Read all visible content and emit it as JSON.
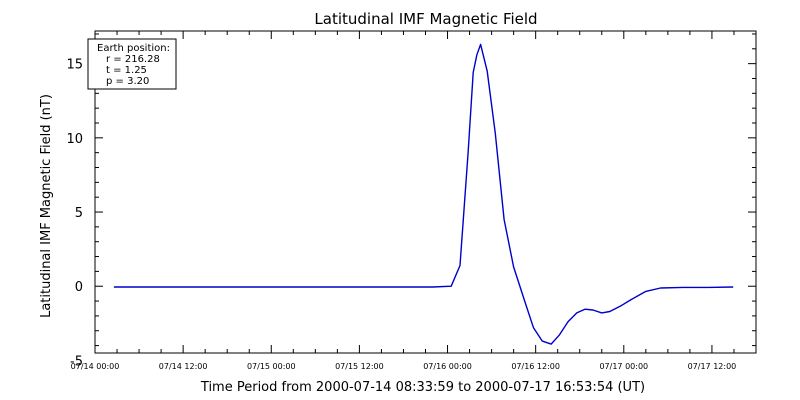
{
  "chart_data": {
    "type": "line",
    "title": "Latitudinal IMF Magnetic Field",
    "xlabel": "Time Period from 2000-07-14 08:33:59 to 2000-07-17 16:53:54 (UT)",
    "ylabel": "Latitudinal IMF Magnetic Field (nT)",
    "x_ticks": [
      "07/14 00:00",
      "07/14 12:00",
      "07/15 00:00",
      "07/15 12:00",
      "07/16 00:00",
      "07/16 12:00",
      "07/17 00:00",
      "07/17 12:00"
    ],
    "y_ticks": [
      "-5",
      "0",
      "5",
      "10",
      "15"
    ],
    "xlim_hours": [
      0,
      90
    ],
    "ylim": [
      -4.5,
      17.2
    ],
    "grid": false,
    "line_color": "#0000cc",
    "legend": {
      "placement": "top-left",
      "lines": [
        "Earth position:",
        "r = 216.28",
        "t = 1.25",
        "p = 3.20"
      ]
    },
    "series": [
      {
        "x_hours": [
          2.57,
          10,
          20,
          30,
          40,
          46,
          48.5,
          49.7,
          50.8,
          51.5,
          52.0,
          52.5,
          53.4,
          54.5,
          55.7,
          57,
          58.5,
          59.7,
          60.9,
          62.1,
          63.2,
          64.4,
          65.6,
          66.7,
          67.8,
          69.0,
          70.1,
          71.5,
          73,
          75,
          77,
          80,
          83.5,
          86.9
        ],
        "y": [
          -0.05,
          -0.05,
          -0.05,
          -0.05,
          -0.05,
          -0.05,
          0.0,
          1.4,
          9.0,
          14.4,
          15.6,
          16.3,
          14.5,
          10.3,
          4.5,
          1.3,
          -1.0,
          -2.8,
          -3.7,
          -3.9,
          -3.3,
          -2.4,
          -1.8,
          -1.55,
          -1.6,
          -1.8,
          -1.7,
          -1.35,
          -0.9,
          -0.35,
          -0.12,
          -0.08,
          -0.08,
          -0.05
        ]
      }
    ]
  }
}
